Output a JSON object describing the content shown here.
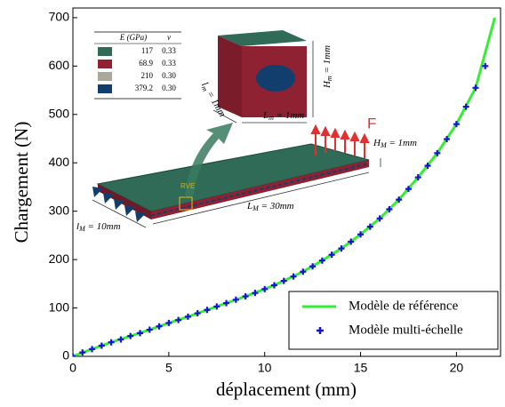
{
  "chart_data": {
    "type": "line",
    "xlabel": "déplacement (mm)",
    "ylabel": "Chargement (N)",
    "xlim": [
      0,
      22.3
    ],
    "ylim": [
      0,
      720
    ],
    "xticks": [
      0,
      5,
      10,
      15,
      20
    ],
    "yticks": [
      0,
      100,
      200,
      300,
      400,
      500,
      600,
      700
    ],
    "legend_loc": "lower right",
    "series": [
      {
        "name": "Modèle de référence",
        "color": "#33ee33",
        "style": "line",
        "x": [
          0,
          1,
          2,
          3,
          4,
          5,
          6,
          7,
          8,
          9,
          10,
          11,
          12,
          13,
          14,
          15,
          16,
          17,
          18,
          19,
          20,
          21,
          22
        ],
        "values": [
          0,
          15,
          29,
          42,
          55,
          69,
          82,
          96,
          110,
          124,
          139,
          156,
          175,
          198,
          223,
          252,
          285,
          324,
          370,
          420,
          480,
          555,
          700
        ]
      },
      {
        "name": "Modèle multi-échelle",
        "color": "#1414d4",
        "style": "marker",
        "x": [
          0,
          0.5,
          1,
          1.5,
          2,
          2.5,
          3,
          3.5,
          4,
          4.5,
          5,
          5.5,
          6,
          6.5,
          7,
          7.5,
          8,
          8.5,
          9,
          9.5,
          10,
          10.5,
          11,
          11.5,
          12,
          12.5,
          13,
          13.5,
          14,
          14.5,
          15,
          15.5,
          16,
          16.5,
          17,
          17.5,
          18,
          18.5,
          19,
          19.5,
          20,
          20.5,
          21,
          21.5
        ],
        "values": [
          0,
          8,
          15,
          22,
          29,
          35,
          42,
          48,
          55,
          62,
          69,
          75,
          82,
          89,
          96,
          103,
          110,
          117,
          124,
          131,
          139,
          147,
          156,
          165,
          175,
          186,
          198,
          210,
          223,
          237,
          252,
          268,
          285,
          304,
          324,
          346,
          370,
          394,
          420,
          449,
          480,
          516,
          555,
          600
        ]
      }
    ]
  },
  "inset": {
    "materials": {
      "header": [
        "E (GPa)",
        "ν"
      ],
      "rows": [
        {
          "color": "#2f6b57",
          "E": "117",
          "nu": "0.33"
        },
        {
          "color": "#8e2232",
          "E": "68.9",
          "nu": "0.33"
        },
        {
          "color": "#aaa89a",
          "E": "210",
          "nu": "0.30"
        },
        {
          "color": "#123e6e",
          "E": "379.2",
          "nu": "0.30"
        }
      ]
    },
    "Hm": {
      "symbol": "H",
      "sub": "m",
      "rest": " = 1mm"
    },
    "Lm": {
      "symbol": "L",
      "sub": "m",
      "rest": " = 1mm"
    },
    "lm": {
      "symbol": "l",
      "sub": "m",
      "rest": " = 1mm"
    },
    "HM": {
      "symbol": "H",
      "sub": "M",
      "rest": " = 1mm"
    },
    "LM": {
      "symbol": "L",
      "sub": "M",
      "rest": " = 30mm"
    },
    "lM": {
      "symbol": "l",
      "sub": "M",
      "rest": " = 10mm"
    },
    "force": "F",
    "rve": "RVE"
  }
}
